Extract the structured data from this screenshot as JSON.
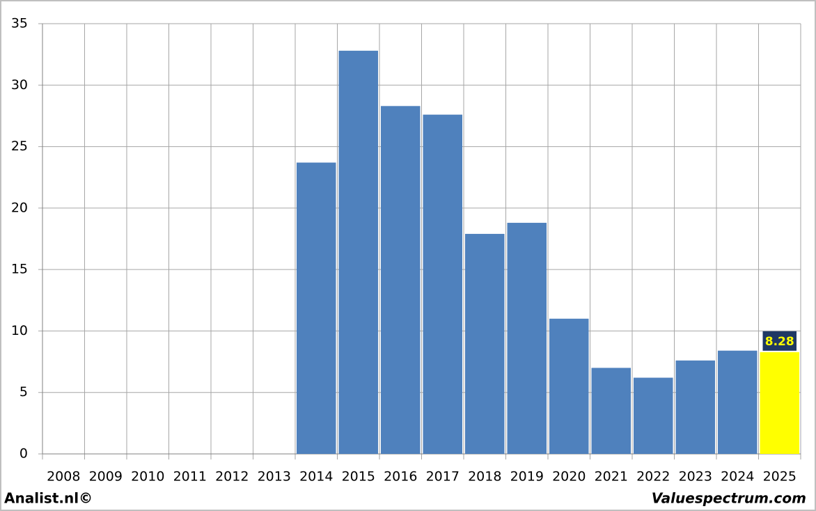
{
  "chart_data": {
    "type": "bar",
    "categories": [
      "2008",
      "2009",
      "2010",
      "2011",
      "2012",
      "2013",
      "2014",
      "2015",
      "2016",
      "2017",
      "2018",
      "2019",
      "2020",
      "2021",
      "2022",
      "2023",
      "2024",
      "2025"
    ],
    "values": [
      null,
      null,
      null,
      null,
      null,
      null,
      23.7,
      32.8,
      28.3,
      27.6,
      17.9,
      18.8,
      11.0,
      7.0,
      6.2,
      7.6,
      8.4,
      8.28
    ],
    "value_labels": [
      null,
      null,
      null,
      null,
      null,
      null,
      null,
      null,
      null,
      null,
      null,
      null,
      null,
      null,
      null,
      null,
      null,
      "8.28"
    ],
    "colors": [
      "#4f81bd",
      "#4f81bd",
      "#4f81bd",
      "#4f81bd",
      "#4f81bd",
      "#4f81bd",
      "#4f81bd",
      "#4f81bd",
      "#4f81bd",
      "#4f81bd",
      "#4f81bd",
      "#4f81bd",
      "#4f81bd",
      "#4f81bd",
      "#4f81bd",
      "#4f81bd",
      "#4f81bd",
      "#ffff00"
    ],
    "ylim": [
      0,
      35
    ],
    "yticks": [
      0,
      5,
      10,
      15,
      20,
      25,
      30,
      35
    ],
    "grid": true,
    "footer_left": "Analist.nl©",
    "footer_right": "Valuespectrum.com"
  }
}
